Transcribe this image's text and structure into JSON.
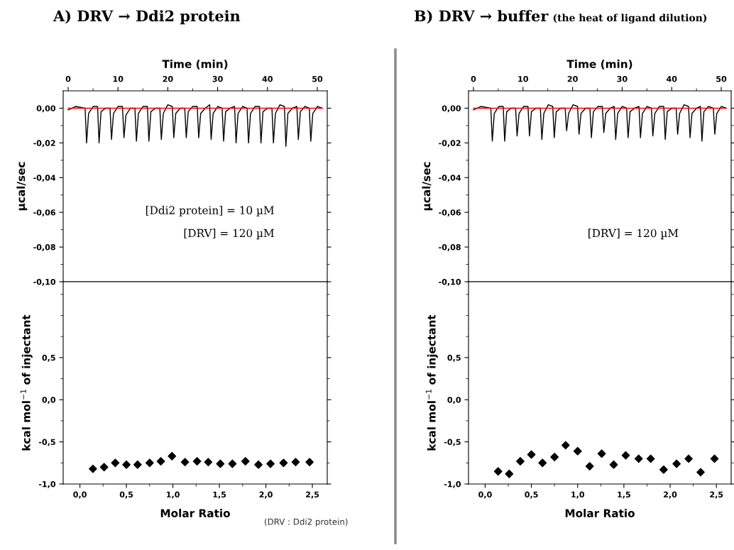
{
  "chart_data": [
    {
      "type": "line",
      "title": "A) DRV → Ddi2 protein",
      "ylabel": "µcal/sec",
      "xlabel": "Time (min)",
      "xlim": [
        -1,
        52
      ],
      "xticks": [
        0,
        {
          "value": 5,
          "label": null
        },
        10,
        {
          "value": 15,
          "label": null
        },
        20,
        {
          "value": 25,
          "label": null
        },
        30,
        {
          "value": 35,
          "label": null
        },
        40,
        {
          "value": 45,
          "label": null
        },
        50
      ],
      "ylim": [
        -0.1,
        0.01
      ],
      "yticks": [
        {
          "value": 0,
          "label": "0,00"
        },
        {
          "value": -0.01,
          "label": null
        },
        {
          "value": -0.02,
          "label": "-0,02"
        },
        {
          "value": -0.03,
          "label": null
        },
        {
          "value": -0.04,
          "label": "-0,04"
        },
        {
          "value": -0.05,
          "label": null
        },
        {
          "value": -0.06,
          "label": "-0,06"
        },
        {
          "value": -0.07,
          "label": null
        },
        {
          "value": -0.08,
          "label": "-0,08"
        },
        {
          "value": -0.09,
          "label": null
        },
        {
          "value": -0.1,
          "label": "-0,10"
        }
      ],
      "annotations": [
        "[Ddi2 protein] = 10 µM",
        "[DRV] = 120 µM"
      ],
      "series": [
        {
          "color": "#000000",
          "x": [
            0,
            1.5,
            3.4,
            3.7,
            4.1,
            5.0,
            5.9,
            6.2,
            6.6,
            7.5,
            8.4,
            8.7,
            9.1,
            10.0,
            10.9,
            11.2,
            11.6,
            12.5,
            13.4,
            13.7,
            14.1,
            15.0,
            15.9,
            16.2,
            16.6,
            17.5,
            18.4,
            18.7,
            19.1,
            20.0,
            20.9,
            21.2,
            21.6,
            22.5,
            23.4,
            23.7,
            24.1,
            25.0,
            25.9,
            26.2,
            26.6,
            27.5,
            28.4,
            28.7,
            29.1,
            30.0,
            30.9,
            31.2,
            31.6,
            32.5,
            33.4,
            33.7,
            34.1,
            35.0,
            35.9,
            36.2,
            36.6,
            37.5,
            38.4,
            38.7,
            39.1,
            40.0,
            40.9,
            41.2,
            41.6,
            42.5,
            43.4,
            43.7,
            44.1,
            45.0,
            45.9,
            46.2,
            46.6,
            47.5,
            48.4,
            48.7,
            49.1,
            50.0,
            51.0
          ],
          "values": [
            -0.001,
            0.001,
            0.0,
            -0.02,
            -0.003,
            0.001,
            0.001,
            -0.02,
            -0.002,
            0.0,
            0.0,
            -0.018,
            -0.003,
            0.001,
            0.001,
            -0.017,
            -0.004,
            0.0,
            0.0,
            -0.019,
            -0.003,
            0.001,
            0.001,
            -0.019,
            -0.002,
            0.0,
            0.0,
            -0.018,
            -0.003,
            0.002,
            0.001,
            -0.017,
            -0.003,
            0.0,
            0.0,
            -0.017,
            -0.002,
            0.001,
            0.001,
            -0.017,
            -0.003,
            0.0,
            0.002,
            -0.018,
            -0.003,
            0.001,
            0.0,
            -0.019,
            -0.002,
            0.0,
            0.001,
            -0.02,
            -0.003,
            0.001,
            0.0,
            -0.02,
            -0.003,
            0.001,
            0.001,
            -0.02,
            -0.002,
            0.0,
            0.0,
            -0.02,
            -0.003,
            0.002,
            0.001,
            -0.022,
            -0.003,
            0.0,
            0.001,
            -0.018,
            -0.002,
            0.001,
            0.0,
            -0.019,
            -0.003,
            0.001,
            0.0
          ]
        },
        {
          "color": "#ff0000",
          "x": [
            0,
            51
          ],
          "values": [
            0,
            0
          ]
        }
      ]
    },
    {
      "type": "scatter",
      "xlabel": "Molar Ratio",
      "ylabel": "kcal mol$^{−1}$ of injectant",
      "marker": "diamond",
      "annotations": [
        "(DRV : Ddi2 protein)"
      ],
      "xlim": [
        -0.18,
        2.66
      ],
      "xticks": [
        {
          "value": 0,
          "label": "0,0"
        },
        {
          "value": 0.25,
          "label": null
        },
        {
          "value": 0.5,
          "label": "0,5"
        },
        {
          "value": 0.75,
          "label": null
        },
        {
          "value": 1.0,
          "label": "1,0"
        },
        {
          "value": 1.25,
          "label": null
        },
        {
          "value": 1.5,
          "label": "1,5"
        },
        {
          "value": 1.75,
          "label": null
        },
        {
          "value": 2.0,
          "label": "2,0"
        },
        {
          "value": 2.25,
          "label": null
        },
        {
          "value": 2.5,
          "label": "2,5"
        }
      ],
      "ylim": [
        -1.0,
        1.4
      ],
      "yticks": [
        {
          "value": -1.0,
          "label": "-1,0"
        },
        {
          "value": -0.75,
          "label": null
        },
        {
          "value": -0.5,
          "label": "-0,5"
        },
        {
          "value": -0.25,
          "label": null
        },
        {
          "value": 0,
          "label": "0,0"
        },
        {
          "value": 0.25,
          "label": null
        },
        {
          "value": 0.5,
          "label": "0,5"
        },
        {
          "value": 0.75,
          "label": null
        },
        {
          "value": 1.0,
          "label": null
        },
        {
          "value": 1.25,
          "label": null
        }
      ],
      "x": [
        0.14,
        0.26,
        0.38,
        0.5,
        0.62,
        0.75,
        0.87,
        0.99,
        1.13,
        1.26,
        1.38,
        1.51,
        1.64,
        1.78,
        1.92,
        2.05,
        2.19,
        2.32,
        2.47
      ],
      "series": [
        {
          "color": "#000000",
          "values": [
            -0.82,
            -0.8,
            -0.75,
            -0.77,
            -0.77,
            -0.75,
            -0.73,
            -0.67,
            -0.74,
            -0.73,
            -0.74,
            -0.76,
            -0.76,
            -0.73,
            -0.77,
            -0.76,
            -0.75,
            -0.74,
            -0.74
          ]
        }
      ]
    },
    {
      "type": "line",
      "title": "B) DRV → buffer",
      "subtitle": "(the heat of ligand dilution)",
      "ylabel": "µcal/sec",
      "xlabel": "Time (min)",
      "xlim": [
        -1,
        52
      ],
      "xticks": [
        0,
        {
          "value": 5,
          "label": null
        },
        10,
        {
          "value": 15,
          "label": null
        },
        20,
        {
          "value": 25,
          "label": null
        },
        30,
        {
          "value": 35,
          "label": null
        },
        40,
        {
          "value": 45,
          "label": null
        },
        50
      ],
      "ylim": [
        -0.1,
        0.01
      ],
      "yticks": [
        {
          "value": 0,
          "label": "0,00"
        },
        {
          "value": -0.01,
          "label": null
        },
        {
          "value": -0.02,
          "label": "-0,02"
        },
        {
          "value": -0.03,
          "label": null
        },
        {
          "value": -0.04,
          "label": "-0,04"
        },
        {
          "value": -0.05,
          "label": null
        },
        {
          "value": -0.06,
          "label": "-0,06"
        },
        {
          "value": -0.07,
          "label": null
        },
        {
          "value": -0.08,
          "label": "-0,08"
        },
        {
          "value": -0.09,
          "label": null
        },
        {
          "value": -0.1,
          "label": "-0,10"
        }
      ],
      "annotations": [
        "[DRV] = 120 µM"
      ],
      "series": [
        {
          "color": "#000000",
          "x": [
            0,
            1.5,
            3.5,
            3.8,
            4.2,
            5.1,
            6.0,
            6.3,
            6.7,
            7.6,
            8.5,
            8.8,
            9.2,
            10.1,
            11.0,
            11.3,
            11.7,
            12.6,
            13.5,
            13.8,
            14.2,
            15.1,
            16.0,
            16.3,
            16.7,
            17.6,
            18.5,
            18.8,
            19.2,
            20.1,
            21.0,
            21.3,
            21.7,
            22.6,
            23.5,
            23.8,
            24.2,
            25.1,
            26.0,
            26.3,
            26.7,
            27.6,
            28.4,
            28.7,
            29.1,
            30.0,
            30.9,
            31.2,
            31.6,
            32.5,
            33.4,
            33.7,
            34.1,
            35.0,
            35.9,
            36.2,
            36.6,
            37.5,
            38.4,
            38.7,
            39.1,
            40.0,
            40.9,
            41.2,
            41.6,
            42.5,
            43.4,
            43.7,
            44.1,
            45.0,
            45.8,
            46.1,
            46.5,
            47.4,
            48.4,
            48.7,
            49.1,
            50.0,
            51.0
          ],
          "values": [
            -0.001,
            0.001,
            0.0,
            -0.019,
            -0.003,
            0.001,
            0.001,
            -0.019,
            -0.002,
            0.0,
            0.0,
            -0.016,
            -0.003,
            0.001,
            0.001,
            -0.016,
            -0.002,
            0.0,
            0.0,
            -0.018,
            -0.003,
            0.002,
            0.001,
            -0.017,
            -0.002,
            0.0,
            0.0,
            -0.013,
            -0.003,
            0.002,
            0.001,
            -0.015,
            -0.003,
            0.0,
            0.0,
            -0.017,
            -0.002,
            0.001,
            0.001,
            -0.014,
            -0.003,
            0.0,
            0.001,
            -0.018,
            -0.003,
            0.001,
            0.0,
            -0.017,
            -0.002,
            0.0,
            0.001,
            -0.017,
            -0.003,
            0.001,
            0.0,
            -0.016,
            -0.003,
            0.001,
            0.001,
            -0.018,
            -0.002,
            0.0,
            0.0,
            -0.015,
            -0.003,
            0.002,
            0.001,
            -0.017,
            -0.003,
            0.0,
            0.001,
            -0.019,
            -0.002,
            0.001,
            0.0,
            -0.015,
            -0.003,
            0.001,
            0.0
          ]
        },
        {
          "color": "#ff0000",
          "x": [
            0,
            51
          ],
          "values": [
            0,
            0
          ]
        }
      ]
    },
    {
      "type": "scatter",
      "xlabel": "Molar Ratio",
      "ylabel": "kcal mol$^{−1}$ of injectant",
      "marker": "diamond",
      "xlim": [
        -0.18,
        2.66
      ],
      "xticks": [
        {
          "value": 0,
          "label": "0,0"
        },
        {
          "value": 0.25,
          "label": null
        },
        {
          "value": 0.5,
          "label": "0,5"
        },
        {
          "value": 0.75,
          "label": null
        },
        {
          "value": 1.0,
          "label": "1,0"
        },
        {
          "value": 1.25,
          "label": null
        },
        {
          "value": 1.5,
          "label": "1,5"
        },
        {
          "value": 1.75,
          "label": null
        },
        {
          "value": 2.0,
          "label": "2,0"
        },
        {
          "value": 2.25,
          "label": null
        },
        {
          "value": 2.5,
          "label": "2,5"
        }
      ],
      "ylim": [
        -1.0,
        1.4
      ],
      "yticks": [
        {
          "value": -1.0,
          "label": "-1,0"
        },
        {
          "value": -0.75,
          "label": null
        },
        {
          "value": -0.5,
          "label": "-0,5"
        },
        {
          "value": -0.25,
          "label": null
        },
        {
          "value": 0,
          "label": "0,0"
        },
        {
          "value": 0.25,
          "label": null
        },
        {
          "value": 0.5,
          "label": "0,5"
        },
        {
          "value": 0.75,
          "label": null
        },
        {
          "value": 1.0,
          "label": null
        },
        {
          "value": 1.25,
          "label": null
        }
      ],
      "x": [
        0.14,
        0.26,
        0.38,
        0.5,
        0.62,
        0.75,
        0.87,
        1.0,
        1.13,
        1.26,
        1.39,
        1.52,
        1.66,
        1.79,
        1.93,
        2.07,
        2.2,
        2.33,
        2.48
      ],
      "series": [
        {
          "color": "#000000",
          "values": [
            -0.85,
            -0.88,
            -0.73,
            -0.65,
            -0.75,
            -0.68,
            -0.54,
            -0.61,
            -0.79,
            -0.64,
            -0.77,
            -0.66,
            -0.7,
            -0.7,
            -0.83,
            -0.76,
            -0.7,
            -0.86,
            -0.7
          ]
        }
      ]
    }
  ]
}
